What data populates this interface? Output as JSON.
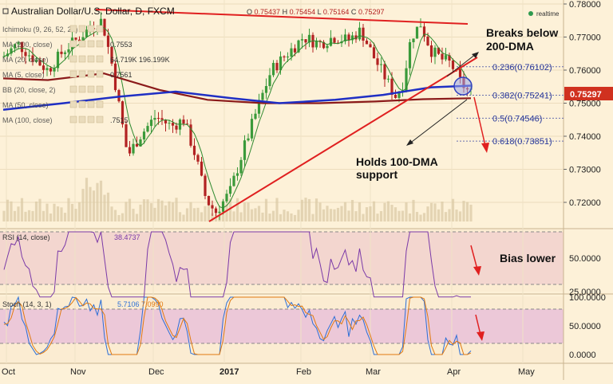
{
  "header": {
    "title": "Australian Dollar/U.S. Dollar, D, FXCM",
    "ohlc": [
      {
        "label": "O",
        "value": "0.75437"
      },
      {
        "label": "H",
        "value": "0.75454"
      },
      {
        "label": "L",
        "value": "0.75164"
      },
      {
        "label": "C",
        "value": "0.75297"
      }
    ],
    "realtime": "realtime"
  },
  "indicators": [
    {
      "label": "Ichimoku (9, 26, 52, 26)",
      "value": ""
    },
    {
      "label": "MA (200, close)",
      "value": "0.7553"
    },
    {
      "label": "MA (20, close)",
      "value": "64.719K  196.199K"
    },
    {
      "label": "MA (5, close)",
      "value": "0.7561"
    },
    {
      "label": "BB (20, close, 2)",
      "value": ""
    },
    {
      "label": "MA (50, close)",
      "value": ""
    },
    {
      "label": "MA (100, close)",
      "value": ".7515"
    }
  ],
  "colors": {
    "background": "#fdf1d8",
    "up": "#3a9a3a",
    "down": "#b22222",
    "ma200": "#1f2fc4",
    "ma100": "#8b1a1a",
    "trend": "#e02020",
    "rsi_band": "#f3d6cf",
    "stoch_band": "#ecc8d8",
    "price_tag": "#d0311f"
  },
  "annotations": {
    "breaks": "Breaks below\n200-DMA",
    "holds": "Holds 100-DMA\nsupport",
    "bias": "Bias lower"
  },
  "rsi": {
    "label": "RSI (14, close)",
    "value": "38.4737",
    "ticks": [
      "50.0000",
      "25.0000"
    ]
  },
  "stoch": {
    "label": "Stoch (14, 3, 1)",
    "k": "5.7106",
    "d": "7.0990",
    "ticks": [
      "100.0000",
      "50.0000",
      "0.0000"
    ]
  },
  "price_tag": "0.75297",
  "chart_data": {
    "type": "candlestick",
    "instrument": "AUD/USD",
    "timeframe": "D",
    "x_labels": [
      "Oct",
      "Nov",
      "Dec",
      "2017",
      "Feb",
      "Mar",
      "Apr",
      "May"
    ],
    "y_ticks": [
      "0.78000",
      "0.77000",
      "0.76000",
      "0.75000",
      "0.74000",
      "0.73000",
      "0.72000"
    ],
    "ylim": [
      0.7125,
      0.7805
    ],
    "last_close": 0.75297,
    "fibonacci": [
      {
        "level": "0.236",
        "price": 0.76102
      },
      {
        "level": "0.382",
        "price": 0.75241
      },
      {
        "level": "0.5",
        "price": 0.74546
      },
      {
        "level": "0.618",
        "price": 0.73851
      }
    ],
    "ma200_last": 0.7553,
    "ma5_last": 0.7561,
    "ma100_last": 0.7515,
    "rsi_last": 38.4737,
    "stoch_k_last": 5.7106,
    "stoch_d_last": 7.099
  }
}
